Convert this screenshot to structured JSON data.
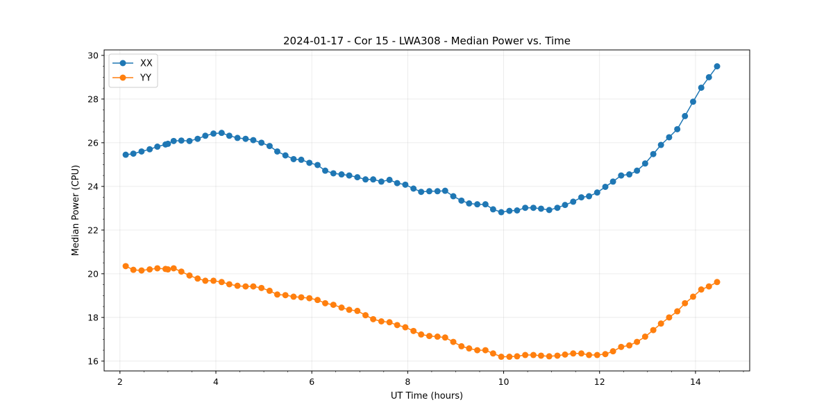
{
  "chart_data": {
    "type": "line",
    "title": "2024-01-17 - Cor 15 - LWA308 - Median Power vs. Time",
    "xlabel": "UT Time (hours)",
    "ylabel": "Median Power (CPU)",
    "xlim": [
      1.67,
      15.13
    ],
    "ylim": [
      15.55,
      30.25
    ],
    "xticks": [
      2,
      4,
      6,
      8,
      10,
      12,
      14
    ],
    "yticks": [
      16,
      18,
      20,
      22,
      24,
      26,
      28,
      30
    ],
    "grid": true,
    "legend": "top-left",
    "series": [
      {
        "name": "XX",
        "color": "#1f77b4",
        "x": [
          2.12,
          2.28,
          2.45,
          2.62,
          2.78,
          2.95,
          3.0,
          3.12,
          3.28,
          3.45,
          3.62,
          3.78,
          3.95,
          4.12,
          4.28,
          4.45,
          4.62,
          4.78,
          4.95,
          5.12,
          5.28,
          5.45,
          5.62,
          5.78,
          5.95,
          6.12,
          6.28,
          6.45,
          6.62,
          6.78,
          6.95,
          7.12,
          7.28,
          7.45,
          7.62,
          7.78,
          7.95,
          8.12,
          8.28,
          8.45,
          8.62,
          8.78,
          8.95,
          9.12,
          9.28,
          9.45,
          9.62,
          9.78,
          9.95,
          10.12,
          10.28,
          10.45,
          10.62,
          10.78,
          10.95,
          11.12,
          11.28,
          11.45,
          11.62,
          11.78,
          11.95,
          12.12,
          12.28,
          12.45,
          12.62,
          12.78,
          12.95,
          13.12,
          13.28,
          13.45,
          13.62,
          13.78,
          13.95,
          14.12,
          14.28,
          14.45
        ],
        "values": [
          25.45,
          25.5,
          25.6,
          25.7,
          25.82,
          25.92,
          25.95,
          26.08,
          26.1,
          26.08,
          26.18,
          26.32,
          26.42,
          26.45,
          26.32,
          26.22,
          26.18,
          26.12,
          26.0,
          25.85,
          25.6,
          25.42,
          25.25,
          25.22,
          25.08,
          24.98,
          24.72,
          24.6,
          24.55,
          24.5,
          24.42,
          24.32,
          24.32,
          24.22,
          24.3,
          24.15,
          24.08,
          23.9,
          23.75,
          23.78,
          23.78,
          23.8,
          23.55,
          23.35,
          23.22,
          23.18,
          23.18,
          22.95,
          22.82,
          22.88,
          22.9,
          23.02,
          23.02,
          22.98,
          22.92,
          23.02,
          23.15,
          23.3,
          23.5,
          23.55,
          23.72,
          23.98,
          24.22,
          24.5,
          24.55,
          24.72,
          25.05,
          25.48,
          25.9,
          26.25,
          26.62,
          27.22,
          27.88,
          28.52,
          29.0,
          29.5
        ]
      },
      {
        "name": "YY",
        "color": "#ff7f0e",
        "x": [
          2.12,
          2.28,
          2.45,
          2.62,
          2.78,
          2.95,
          3.0,
          3.12,
          3.28,
          3.45,
          3.62,
          3.78,
          3.95,
          4.12,
          4.28,
          4.45,
          4.62,
          4.78,
          4.95,
          5.12,
          5.28,
          5.45,
          5.62,
          5.78,
          5.95,
          6.12,
          6.28,
          6.45,
          6.62,
          6.78,
          6.95,
          7.12,
          7.28,
          7.45,
          7.62,
          7.78,
          7.95,
          8.12,
          8.28,
          8.45,
          8.62,
          8.78,
          8.95,
          9.12,
          9.28,
          9.45,
          9.62,
          9.78,
          9.95,
          10.12,
          10.28,
          10.45,
          10.62,
          10.78,
          10.95,
          11.12,
          11.28,
          11.45,
          11.62,
          11.78,
          11.95,
          12.12,
          12.28,
          12.45,
          12.62,
          12.78,
          12.95,
          13.12,
          13.28,
          13.45,
          13.62,
          13.78,
          13.95,
          14.12,
          14.28,
          14.45
        ],
        "values": [
          20.35,
          20.18,
          20.15,
          20.2,
          20.25,
          20.22,
          20.2,
          20.25,
          20.1,
          19.92,
          19.78,
          19.68,
          19.68,
          19.62,
          19.52,
          19.45,
          19.42,
          19.42,
          19.35,
          19.22,
          19.05,
          19.02,
          18.95,
          18.92,
          18.88,
          18.8,
          18.65,
          18.58,
          18.45,
          18.35,
          18.3,
          18.1,
          17.92,
          17.82,
          17.78,
          17.65,
          17.55,
          17.38,
          17.22,
          17.15,
          17.12,
          17.08,
          16.88,
          16.68,
          16.58,
          16.5,
          16.5,
          16.35,
          16.2,
          16.2,
          16.22,
          16.28,
          16.28,
          16.25,
          16.22,
          16.25,
          16.3,
          16.35,
          16.35,
          16.28,
          16.28,
          16.32,
          16.45,
          16.65,
          16.72,
          16.88,
          17.12,
          17.42,
          17.72,
          18.0,
          18.28,
          18.65,
          18.95,
          19.28,
          19.42,
          19.62
        ]
      }
    ]
  }
}
